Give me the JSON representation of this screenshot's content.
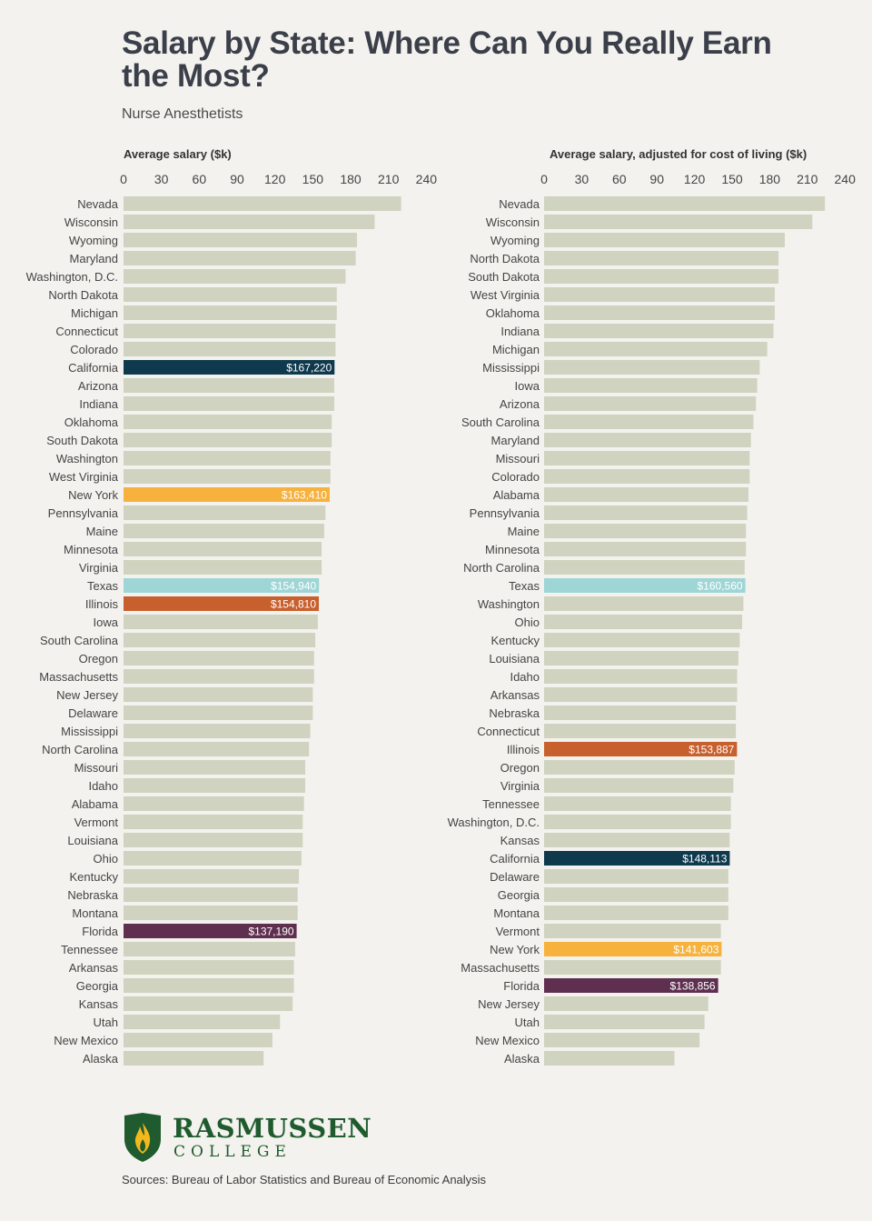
{
  "title": "Salary by State: Where Can You Really Earn the Most?",
  "subtitle": "Nurse Anesthetists",
  "logo": {
    "name": "RASMUSSEN",
    "sub": "COLLEGE"
  },
  "sources": "Sources: Bureau of Labor Statistics and Bureau of Economic Analysis",
  "colors": {
    "default_bar": "#cfd3bf",
    "California": "#0f3a4e",
    "New York": "#f6b23d",
    "Texas": "#9ed6d6",
    "Illinois": "#c8602e",
    "Florida": "#5f2f4f"
  },
  "chart_data": [
    {
      "type": "bar",
      "orientation": "horizontal",
      "title": "Average salary ($k)",
      "xlim": [
        0,
        240
      ],
      "ticks": [
        0,
        30,
        60,
        90,
        120,
        150,
        180,
        210,
        240
      ],
      "categories": [
        "Nevada",
        "Wisconsin",
        "Wyoming",
        "Maryland",
        "Washington, D.C.",
        "North Dakota",
        "Michigan",
        "Connecticut",
        "Colorado",
        "California",
        "Arizona",
        "Indiana",
        "Oklahoma",
        "South Dakota",
        "Washington",
        "West Virginia",
        "New York",
        "Pennsylvania",
        "Maine",
        "Minnesota",
        "Virginia",
        "Texas",
        "Illinois",
        "Iowa",
        "South Carolina",
        "Oregon",
        "Massachusetts",
        "New Jersey",
        "Delaware",
        "Mississippi",
        "North Carolina",
        "Missouri",
        "Idaho",
        "Alabama",
        "Vermont",
        "Louisiana",
        "Ohio",
        "Kentucky",
        "Nebraska",
        "Montana",
        "Florida",
        "Tennessee",
        "Arkansas",
        "Georgia",
        "Kansas",
        "Utah",
        "New Mexico",
        "Alaska"
      ],
      "values": [
        220,
        199,
        185,
        184,
        176,
        169,
        169,
        168,
        168,
        167.22,
        167,
        167,
        165,
        165,
        164,
        164,
        163.41,
        160,
        159,
        157,
        157,
        154.94,
        154.81,
        154,
        152,
        151,
        151,
        150,
        150,
        148,
        147,
        144,
        144,
        143,
        142,
        142,
        141,
        139,
        138,
        138,
        137.19,
        136,
        135,
        135,
        134,
        124,
        118,
        111
      ],
      "data_labels": {
        "California": "$167,220",
        "New York": "$163,410",
        "Texas": "$154,940",
        "Illinois": "$154,810",
        "Florida": "$137,190"
      }
    },
    {
      "type": "bar",
      "orientation": "horizontal",
      "title": "Average salary, adjusted for cost of living ($k)",
      "xlim": [
        0,
        240
      ],
      "ticks": [
        0,
        30,
        60,
        90,
        120,
        150,
        180,
        210,
        240
      ],
      "categories": [
        "Nevada",
        "Wisconsin",
        "Wyoming",
        "North Dakota",
        "South Dakota",
        "West Virginia",
        "Oklahoma",
        "Indiana",
        "Michigan",
        "Mississippi",
        "Iowa",
        "Arizona",
        "South Carolina",
        "Maryland",
        "Missouri",
        "Colorado",
        "Alabama",
        "Pennsylvania",
        "Maine",
        "Minnesota",
        "North Carolina",
        "Texas",
        "Washington",
        "Ohio",
        "Kentucky",
        "Louisiana",
        "Idaho",
        "Arkansas",
        "Nebraska",
        "Connecticut",
        "Illinois",
        "Oregon",
        "Virginia",
        "Tennessee",
        "Washington, D.C.",
        "Kansas",
        "California",
        "Delaware",
        "Georgia",
        "Montana",
        "Vermont",
        "New York",
        "Massachusetts",
        "Florida",
        "New Jersey",
        "Utah",
        "New Mexico",
        "Alaska"
      ],
      "values": [
        224,
        214,
        192,
        187,
        187,
        184,
        184,
        183,
        178,
        172,
        170,
        169,
        167,
        165,
        164,
        164,
        163,
        162,
        161,
        161,
        160,
        160.56,
        159,
        158,
        156,
        155,
        154,
        154,
        153,
        153,
        153.887,
        152,
        151,
        149,
        149,
        148,
        148.113,
        147,
        147,
        147,
        141,
        141.603,
        141,
        138.856,
        131,
        128,
        124,
        104
      ],
      "data_labels": {
        "Texas": "$160,560",
        "Illinois": "$153,887",
        "California": "$148,113",
        "New York": "$141,603",
        "Florida": "$138,856"
      }
    }
  ]
}
